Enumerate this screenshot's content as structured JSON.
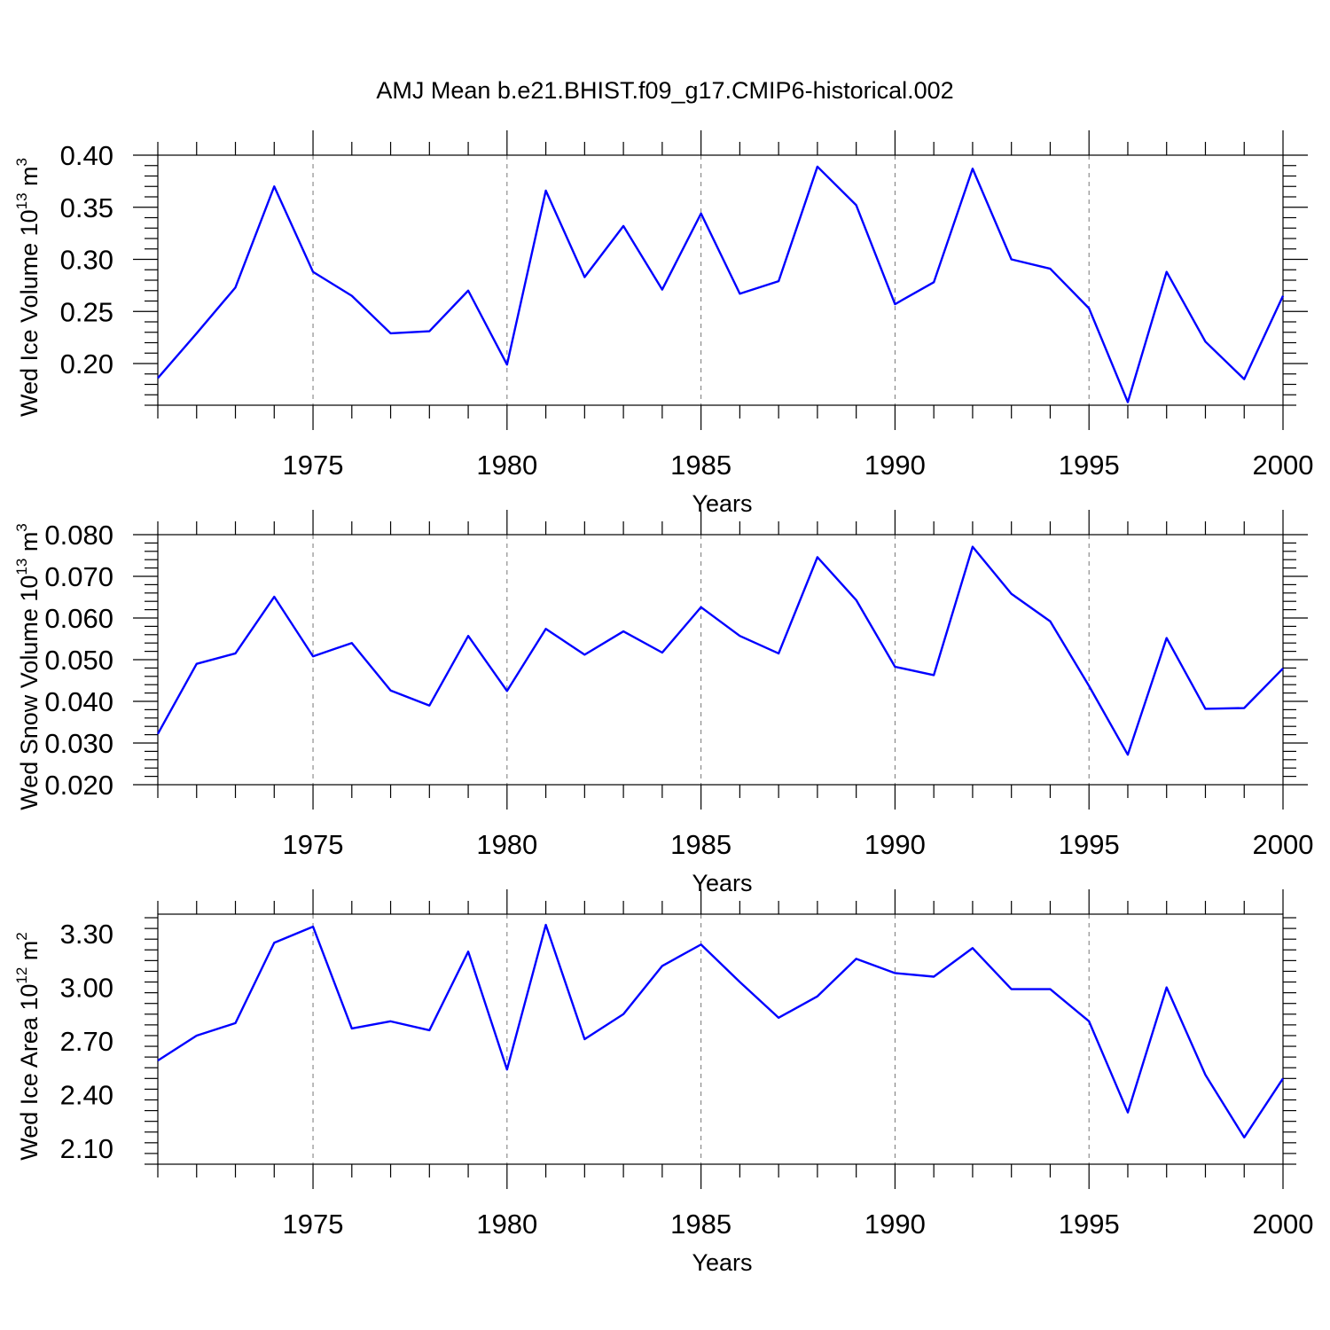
{
  "title": "AMJ Mean b.e21.BHIST.f09_g17.CMIP6-historical.002",
  "colors": {
    "series": "#0000ff",
    "grid": "#777777",
    "axis": "#000000"
  },
  "chart_data": [
    {
      "type": "line",
      "xlabel": "Years",
      "ylabel": {
        "text": "Wed Ice Volume 10",
        "exp": "13",
        "unit": " m",
        "unit_exp": "3"
      },
      "xlim": [
        1971,
        2000
      ],
      "ylim": [
        0.16,
        0.4
      ],
      "xticks": [
        1975,
        1980,
        1985,
        1990,
        1995,
        2000
      ],
      "yticks": [
        0.2,
        0.25,
        0.3,
        0.35,
        0.4
      ],
      "ytick_labels": [
        "0.20",
        "0.25",
        "0.30",
        "0.35",
        "0.40"
      ],
      "y_minor_step": 0.01,
      "grid": "vertical dashed at major x ticks",
      "x": [
        1971,
        1972,
        1973,
        1974,
        1975,
        1976,
        1977,
        1978,
        1979,
        1980,
        1981,
        1982,
        1983,
        1984,
        1985,
        1986,
        1987,
        1988,
        1989,
        1990,
        1991,
        1992,
        1993,
        1994,
        1995,
        1996,
        1997,
        1998,
        1999,
        2000
      ],
      "series": [
        {
          "values": [
            0.186,
            0.229,
            0.273,
            0.37,
            0.288,
            0.265,
            0.229,
            0.231,
            0.27,
            0.199,
            0.366,
            0.283,
            0.332,
            0.271,
            0.344,
            0.267,
            0.279,
            0.389,
            0.352,
            0.257,
            0.278,
            0.387,
            0.3,
            0.291,
            0.253,
            0.163,
            0.288,
            0.221,
            0.185,
            0.265
          ]
        }
      ]
    },
    {
      "type": "line",
      "xlabel": "Years",
      "ylabel": {
        "text": "Wed Snow Volume 10",
        "exp": "13",
        "unit": " m",
        "unit_exp": "3"
      },
      "xlim": [
        1971,
        2000
      ],
      "ylim": [
        0.02,
        0.08
      ],
      "xticks": [
        1975,
        1980,
        1985,
        1990,
        1995,
        2000
      ],
      "yticks": [
        0.02,
        0.03,
        0.04,
        0.05,
        0.06,
        0.07,
        0.08
      ],
      "ytick_labels": [
        "0.020",
        "0.030",
        "0.040",
        "0.050",
        "0.060",
        "0.070",
        "0.080"
      ],
      "y_minor_step": 0.002,
      "grid": "vertical dashed at major x ticks",
      "x": [
        1971,
        1972,
        1973,
        1974,
        1975,
        1976,
        1977,
        1978,
        1979,
        1980,
        1981,
        1982,
        1983,
        1984,
        1985,
        1986,
        1987,
        1988,
        1989,
        1990,
        1991,
        1992,
        1993,
        1994,
        1995,
        1996,
        1997,
        1998,
        1999,
        2000
      ],
      "series": [
        {
          "values": [
            0.0322,
            0.049,
            0.0515,
            0.0651,
            0.0508,
            0.054,
            0.0426,
            0.039,
            0.0557,
            0.0425,
            0.0574,
            0.0512,
            0.0568,
            0.0517,
            0.0626,
            0.0557,
            0.0515,
            0.0746,
            0.0643,
            0.0483,
            0.0463,
            0.0771,
            0.0658,
            0.0592,
            0.0437,
            0.0272,
            0.0552,
            0.0382,
            0.0384,
            0.0479
          ]
        }
      ]
    },
    {
      "type": "line",
      "xlabel": "Years",
      "ylabel": {
        "text": "Wed Ice Area 10",
        "exp": "12",
        "unit": " m",
        "unit_exp": "2"
      },
      "xlim": [
        1971,
        2000
      ],
      "ylim": [
        2.01,
        3.41
      ],
      "xticks": [
        1975,
        1980,
        1985,
        1990,
        1995,
        2000
      ],
      "yticks": [
        2.1,
        2.4,
        2.7,
        3.0,
        3.3
      ],
      "ytick_labels": [
        "2.10",
        "2.40",
        "2.70",
        "3.00",
        "3.30"
      ],
      "y_minor_step": 0.06,
      "grid": "vertical dashed at major x ticks",
      "x": [
        1971,
        1972,
        1973,
        1974,
        1975,
        1976,
        1977,
        1978,
        1979,
        1980,
        1981,
        1982,
        1983,
        1984,
        1985,
        1986,
        1987,
        1988,
        1989,
        1990,
        1991,
        1992,
        1993,
        1994,
        1995,
        1996,
        1997,
        1998,
        1999,
        2000
      ],
      "series": [
        {
          "values": [
            2.59,
            2.73,
            2.8,
            3.25,
            3.34,
            2.77,
            2.81,
            2.76,
            3.2,
            2.54,
            3.35,
            2.71,
            2.85,
            3.12,
            3.24,
            3.03,
            2.83,
            2.95,
            3.16,
            3.08,
            3.06,
            3.22,
            2.99,
            2.99,
            2.81,
            2.3,
            3.0,
            2.51,
            2.16,
            2.49
          ]
        }
      ]
    }
  ]
}
